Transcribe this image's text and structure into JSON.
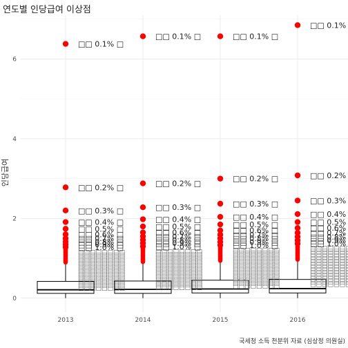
{
  "chart_data": {
    "type": "box",
    "title": "연도별 인당급여 이상점",
    "xlabel": "",
    "ylabel": "인당급여",
    "caption": "국세청 소득 천분위 자료 (심상정 의원실)",
    "categories": [
      "2013",
      "2014",
      "2015",
      "2016"
    ],
    "y_ticks": [
      0,
      2,
      4,
      6
    ],
    "ylim": [
      -0.35,
      7.1
    ],
    "grid": true,
    "boxes": [
      {
        "year": "2013",
        "q1": 0.12,
        "median": 0.21,
        "q3": 0.42,
        "whisker_low": 0.0,
        "whisker_high": 0.88
      },
      {
        "year": "2014",
        "q1": 0.12,
        "median": 0.22,
        "q3": 0.43,
        "whisker_low": 0.0,
        "whisker_high": 0.89
      },
      {
        "year": "2015",
        "q1": 0.13,
        "median": 0.23,
        "q3": 0.45,
        "whisker_low": 0.0,
        "whisker_high": 0.92
      },
      {
        "year": "2016",
        "q1": 0.13,
        "median": 0.24,
        "q3": 0.47,
        "whisker_low": 0.0,
        "whisker_high": 0.95
      }
    ],
    "outliers_colored": [
      {
        "year": "2013",
        "values": [
          6.38,
          2.78,
          2.2,
          1.91,
          1.74,
          1.6,
          1.5,
          1.42,
          1.35,
          1.28
        ]
      },
      {
        "year": "2014",
        "values": [
          6.57,
          2.88,
          2.28,
          1.98,
          1.8,
          1.65,
          1.55,
          1.46,
          1.38,
          1.3
        ]
      },
      {
        "year": "2015",
        "values": [
          6.57,
          3.0,
          2.37,
          2.04,
          1.85,
          1.7,
          1.59,
          1.5,
          1.41,
          1.33
        ]
      },
      {
        "year": "2016",
        "values": [
          6.85,
          3.08,
          2.45,
          2.11,
          1.91,
          1.76,
          1.64,
          1.54,
          1.45,
          1.37
        ]
      }
    ],
    "labels": [
      {
        "year": "2013",
        "items": [
          "□□ 0.1% □",
          "□□ 0.2% □",
          "□□ 0.3% □",
          "□□ 0.4% □",
          "□□ 0.5% □",
          "□□ 0.6% □",
          "□□ 0.7% □",
          "□□ 0.8% □",
          "□□ 0.9% □",
          "□□ 1.0% □"
        ]
      },
      {
        "year": "2014",
        "items": [
          "□□ 0.1% □",
          "□□ 0.2% □",
          "□□ 0.3% □",
          "□□ 0.4% □",
          "□□ 0.5% □",
          "□□ 0.6% □",
          "□□ 0.7% □",
          "□□ 0.8% □",
          "□□ 0.9% □",
          "□□ 1.0% □"
        ]
      },
      {
        "year": "2015",
        "items": [
          "□□ 0.1% □",
          "□□ 0.2% □",
          "□□ 0.3% □",
          "□□ 0.4% □",
          "□□ 0.5% □",
          "□□ 0.6% □",
          "□□ 0.7% □",
          "□□ 0.8% □",
          "□□ 0.9% □",
          "□□ 1.0% □"
        ]
      },
      {
        "year": "2016",
        "items": [
          "□□ 0.1% □",
          "□□ 0.2% □",
          "□□ 0.3% □",
          "□□ 0.4% □",
          "□□ 0.5% □",
          "□□ 0.6% □",
          "□□ 0.7% □",
          "□□ 0.8% □",
          "□□ 0.9% □",
          "□□ 1.0% □"
        ]
      }
    ],
    "colors": {
      "outlier": "#ff0000",
      "box": "#000000",
      "grid": "#ebebeb",
      "text": "#222222"
    }
  }
}
